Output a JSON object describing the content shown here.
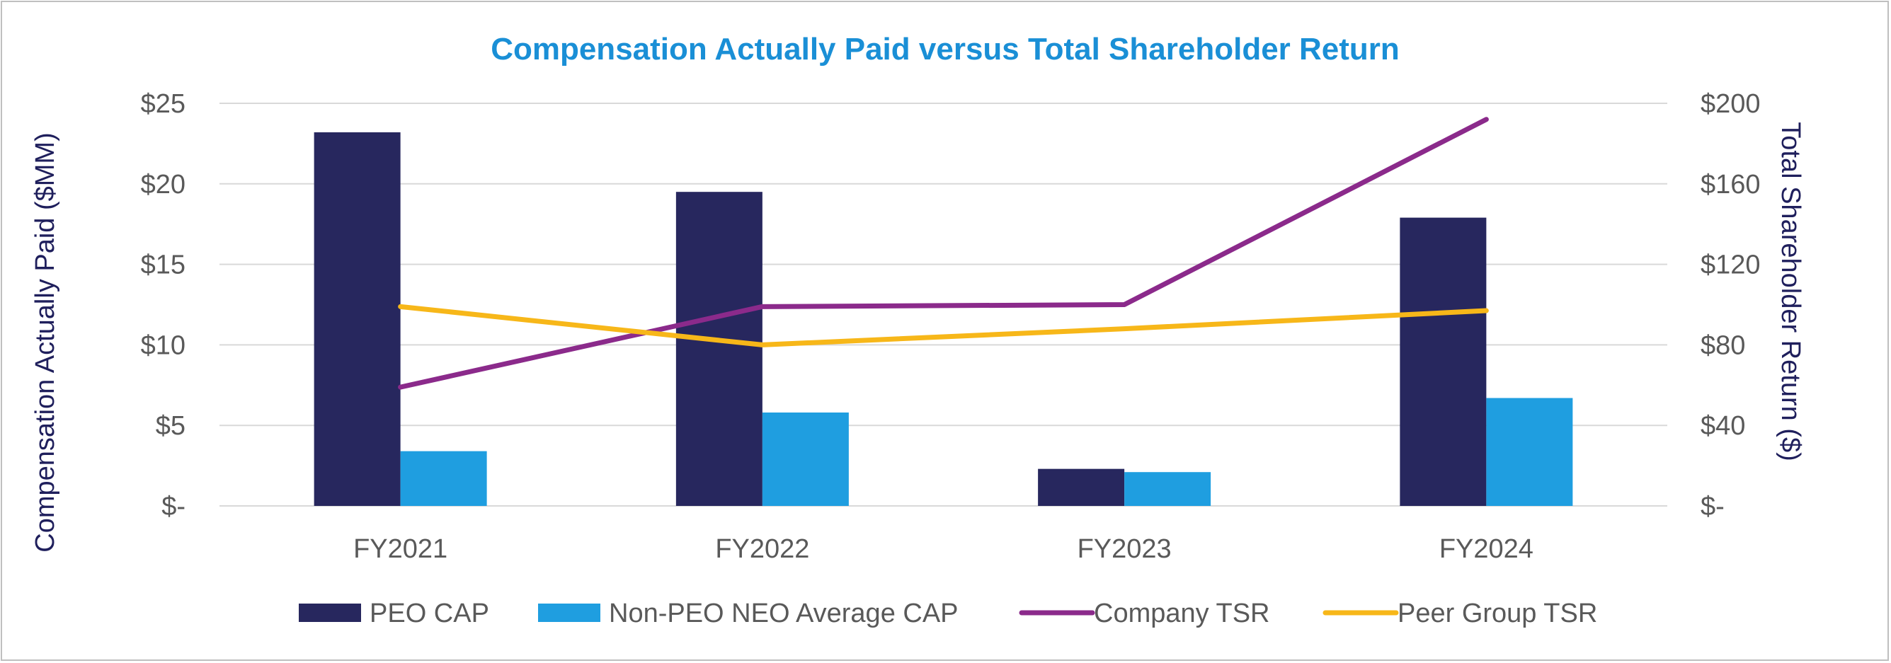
{
  "chart_data": {
    "type": "bar",
    "title": "Compensation Actually Paid versus Total Shareholder Return",
    "categories": [
      "FY2021",
      "FY2022",
      "FY2023",
      "FY2024"
    ],
    "bar_series": [
      {
        "name": "PEO CAP",
        "values": [
          23.2,
          19.5,
          2.3,
          17.9
        ],
        "color": "#27275e"
      },
      {
        "name": "Non-PEO NEO Average CAP",
        "values": [
          3.4,
          5.8,
          2.1,
          6.7
        ],
        "color": "#1f9ee0"
      }
    ],
    "line_series": [
      {
        "name": "Company TSR",
        "values": [
          59,
          99,
          100,
          192
        ],
        "color": "#8b2a8b"
      },
      {
        "name": "Peer Group TSR",
        "values": [
          99,
          80,
          88,
          97
        ],
        "color": "#f7b719"
      }
    ],
    "ylabel": "Compensation Actually Paid ($MM)",
    "y2label": "Total Shareholder Return ($)",
    "ylim": [
      0,
      25
    ],
    "y2lim": [
      0,
      200
    ],
    "y_ticks": [
      {
        "value": 0,
        "label": "$-"
      },
      {
        "value": 5,
        "label": "$5"
      },
      {
        "value": 10,
        "label": "$10"
      },
      {
        "value": 15,
        "label": "$15"
      },
      {
        "value": 20,
        "label": "$20"
      },
      {
        "value": 25,
        "label": "$25"
      }
    ],
    "y2_ticks": [
      {
        "value": 0,
        "label": "$-"
      },
      {
        "value": 40,
        "label": "$40"
      },
      {
        "value": 80,
        "label": "$80"
      },
      {
        "value": 120,
        "label": "$120"
      },
      {
        "value": 160,
        "label": "$160"
      },
      {
        "value": 200,
        "label": "$200"
      }
    ],
    "grid": true,
    "legend_position": "bottom",
    "legend": [
      {
        "label": "PEO CAP",
        "kind": "box",
        "color": "#27275e"
      },
      {
        "label": "Non-PEO NEO Average CAP",
        "kind": "box",
        "color": "#1f9ee0"
      },
      {
        "label": "Company TSR",
        "kind": "line",
        "color": "#8b2a8b"
      },
      {
        "label": "Peer Group TSR",
        "kind": "line",
        "color": "#f7b719"
      }
    ],
    "title_color": "#1a8fd6",
    "label_color": "#1f1f5c",
    "tick_color": "#595959"
  }
}
